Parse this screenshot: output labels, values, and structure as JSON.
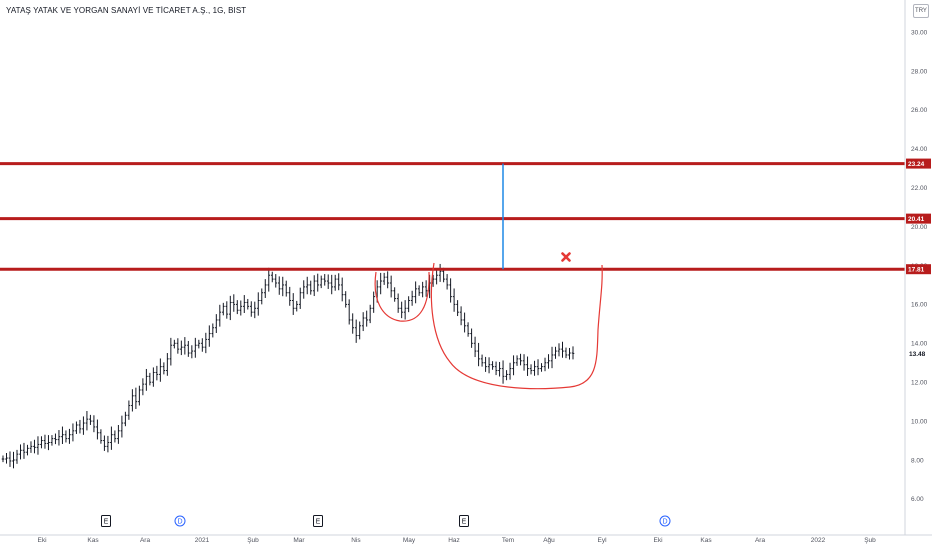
{
  "title": "YATAŞ YATAK VE YORGAN SANAYİ VE TİCARET A.Ş., 1G, BIST",
  "currency": "TRY",
  "colors": {
    "bar": "#131722",
    "level_line": "#b71c1c",
    "drawing": "#e53935",
    "measure": "#1e88e5",
    "grid_axis": "#d1d4dc",
    "last_label_bg": "#ffffff",
    "dividend": "#2962ff",
    "earnings": "#131722"
  },
  "chart_data": {
    "type": "ohlc",
    "yaxis": {
      "ticks": [
        "6.00",
        "8.00",
        "10.00",
        "12.00",
        "14.00",
        "16.00",
        "18.00",
        "20.00",
        "22.00",
        "24.00",
        "26.00",
        "28.00",
        "30.00"
      ],
      "ylim": [
        4.6,
        31.0
      ]
    },
    "xaxis": {
      "ticks": [
        "Eki",
        "Kas",
        "Ara",
        "2021",
        "Şub",
        "Mar",
        "Nis",
        "May",
        "Haz",
        "Tem",
        "Ağu",
        "Eyl",
        "Eki",
        "Kas",
        "Ara",
        "2022",
        "Şub"
      ]
    },
    "price_levels": [
      {
        "value": 23.24,
        "label": "23.24"
      },
      {
        "value": 20.41,
        "label": "20.41"
      },
      {
        "value": 17.81,
        "label": "17.81"
      }
    ],
    "last_price": {
      "value": 13.48,
      "label": "13.48"
    },
    "events": [
      {
        "type": "earnings",
        "label": "E",
        "at": "Kas"
      },
      {
        "type": "dividend",
        "label": "D",
        "at": "Ara"
      },
      {
        "type": "earnings",
        "label": "E",
        "at": "Mar"
      },
      {
        "type": "earnings",
        "label": "E",
        "at": "Haz"
      },
      {
        "type": "dividend",
        "label": "D",
        "at": "Eki"
      }
    ],
    "annotations": [
      {
        "type": "measure-line",
        "from": 17.81,
        "to": 23.24
      },
      {
        "type": "cross-mark",
        "near": 17.81
      },
      {
        "type": "cup-handle-sketch"
      }
    ],
    "series": [
      {
        "values": [
          8.05,
          8.1,
          7.95,
          8.0,
          8.3,
          8.5,
          8.4,
          8.6,
          8.7,
          8.65,
          8.8,
          9.0,
          8.85,
          8.9,
          9.1,
          9.05,
          9.2,
          9.3,
          9.1,
          9.3,
          9.5,
          9.8,
          9.6,
          9.9,
          10.1,
          10.0,
          9.7,
          9.4,
          9.0,
          8.7,
          8.9,
          9.3,
          9.1,
          9.5,
          9.9,
          10.3,
          10.8,
          11.3,
          11.0,
          11.6,
          11.9,
          12.3,
          12.0,
          12.5,
          12.4,
          12.8,
          12.6,
          13.2,
          13.9,
          14.0,
          13.7,
          13.8,
          13.9,
          13.5,
          13.6,
          13.9,
          14.0,
          13.8,
          14.2,
          14.5,
          14.8,
          15.2,
          15.6,
          15.9,
          15.5,
          16.1,
          16.0,
          15.7,
          15.9,
          16.1,
          15.9,
          15.6,
          15.8,
          16.2,
          16.6,
          17.0,
          17.5,
          17.3,
          17.1,
          16.8,
          17.0,
          16.6,
          16.2,
          15.8,
          16.0,
          16.6,
          16.9,
          17.0,
          16.7,
          17.2,
          17.0,
          17.3,
          17.2,
          17.1,
          16.9,
          17.3,
          17.0,
          16.5,
          16.0,
          15.2,
          14.8,
          14.4,
          14.9,
          15.3,
          15.2,
          15.8,
          16.4,
          16.9,
          17.2,
          17.4,
          17.1,
          16.7,
          16.3,
          15.8,
          15.6,
          15.8,
          16.2,
          16.4,
          16.8,
          16.6,
          16.9,
          16.7,
          17.1,
          17.3,
          17.5,
          17.7,
          17.3,
          17.0,
          16.4,
          16.0,
          15.6,
          15.2,
          14.9,
          14.5,
          14.0,
          13.6,
          13.2,
          13.0,
          12.8,
          12.9,
          12.8,
          12.6,
          12.7,
          12.3,
          12.4,
          12.7,
          13.0,
          13.2,
          13.1,
          12.9,
          12.7,
          12.6,
          12.8,
          12.7,
          12.8,
          13.0,
          13.1,
          13.4,
          13.6,
          13.7,
          13.6,
          13.4,
          13.5,
          13.48
        ]
      }
    ]
  }
}
